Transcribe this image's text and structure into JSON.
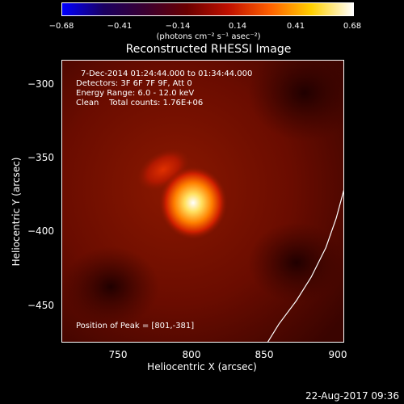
{
  "colorbar": {
    "ticks": [
      "−0.68",
      "−0.41",
      "−0.14",
      "0.14",
      "0.41",
      "0.68"
    ],
    "units": "(photons cm⁻² s⁻¹ asec⁻²)",
    "colors": [
      "#0000ff",
      "#1a0060",
      "#3a0030",
      "#6a0000",
      "#c01000",
      "#ff6000",
      "#ffd000",
      "#ffffff"
    ]
  },
  "plot": {
    "title": "Reconstructed RHESSI Image",
    "info_lines": [
      "7-Dec-2014 01:24:44.000 to 01:34:44.000",
      "Detectors: 3F 6F 7F 9F, Att 0",
      "Energy Range: 6.0 - 12.0 keV",
      "Clean    Total counts: 1.76E+06"
    ],
    "peak_label": "Position of Peak = [801,-381]",
    "xlabel": "Heliocentric X (arcsec)",
    "ylabel": "Heliocentric Y (arcsec)",
    "xticks": [
      "750",
      "800",
      "850",
      "900"
    ],
    "yticks": [
      "−300",
      "−350",
      "−400",
      "−450"
    ],
    "xlim": [
      711,
      903
    ],
    "ylim": [
      -475,
      -283
    ],
    "peak_position": [
      801,
      -381
    ],
    "limb_curve": [
      [
        850,
        -475
      ],
      [
        858,
        -462
      ],
      [
        870,
        -446
      ],
      [
        880,
        -430
      ],
      [
        890,
        -410
      ],
      [
        897,
        -390
      ],
      [
        903,
        -368
      ]
    ]
  },
  "footer": {
    "date": "22-Aug-2017 09:36"
  }
}
